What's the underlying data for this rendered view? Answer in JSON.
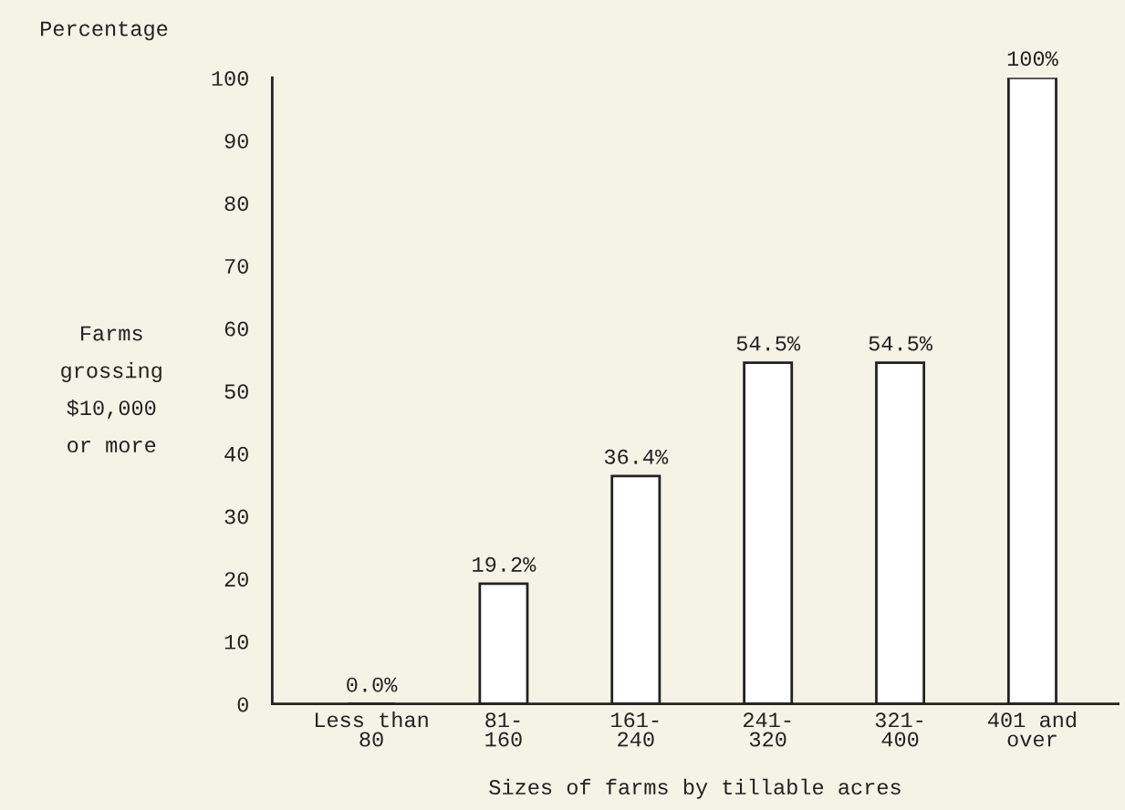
{
  "chart_data": {
    "type": "bar",
    "categories": [
      "Less than\n80",
      "81-\n160",
      "161-\n240",
      "241-\n320",
      "321-\n400",
      "401 and\nover"
    ],
    "values": [
      0.0,
      19.2,
      36.4,
      54.5,
      54.5,
      100
    ],
    "value_labels": [
      "0.0%",
      "19.2%",
      "36.4%",
      "54.5%",
      "54.5%",
      "100%"
    ],
    "color": "#ffffff",
    "xlabel": "Sizes of farms by tillable acres",
    "ylabel": "Farms\ngrossing\n$10,000\nor more",
    "annotations": [
      "Percentage"
    ],
    "ylim": [
      0,
      100
    ],
    "yticks": [
      0,
      10,
      20,
      30,
      40,
      50,
      60,
      70,
      80,
      90,
      100
    ],
    "grid": false
  }
}
